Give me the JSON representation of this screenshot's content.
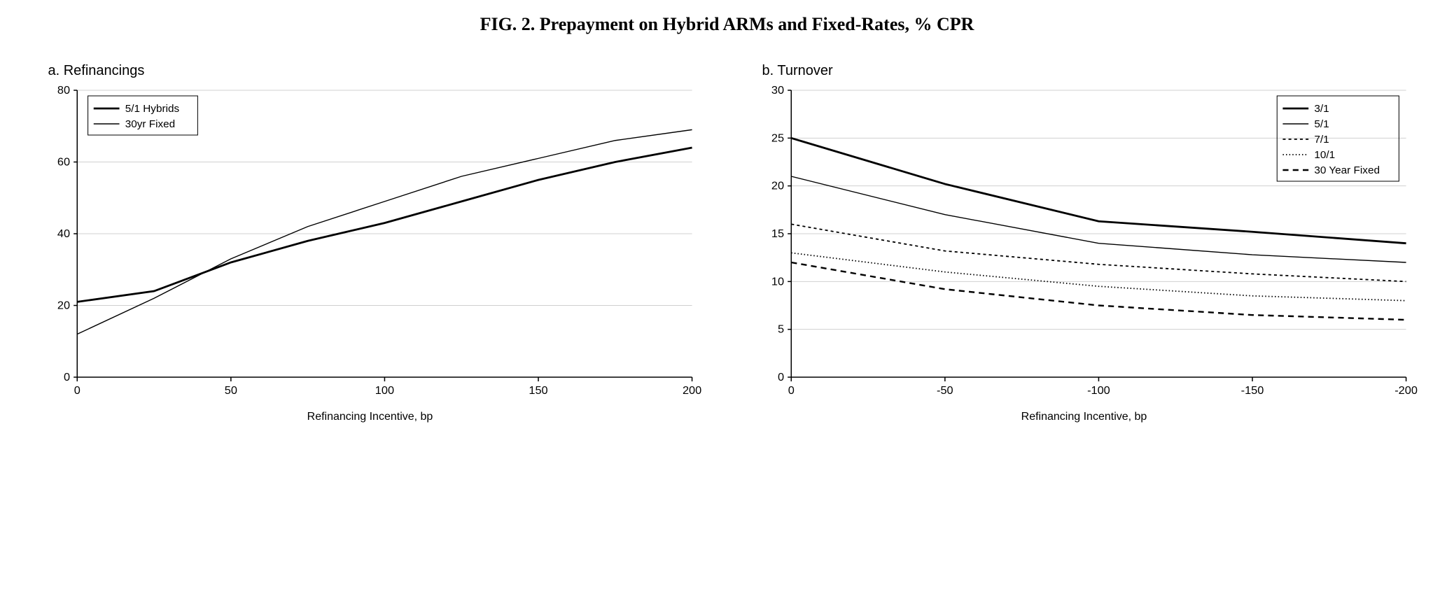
{
  "figure_title": "FIG. 2.  Prepayment on Hybrid ARMs and Fixed-Rates, % CPR",
  "panel_a": {
    "title": "a. Refinancings",
    "xlabel": "Refinancing Incentive, bp",
    "type": "line",
    "xlim": [
      0,
      200
    ],
    "ylim": [
      0,
      80
    ],
    "xticks": [
      0,
      50,
      100,
      150,
      200
    ],
    "yticks": [
      0,
      20,
      40,
      60,
      80
    ],
    "background_color": "#ffffff",
    "axis_color": "#000000",
    "grid_color": "#d0d0d0",
    "grid_on": true,
    "series": [
      {
        "name": "5/1 Hybrids",
        "color": "#000000",
        "line_width": 2.8,
        "dash": "none",
        "x": [
          0,
          25,
          50,
          75,
          100,
          125,
          150,
          175,
          200
        ],
        "y": [
          21,
          24,
          32,
          38,
          43,
          49,
          55,
          60,
          64
        ]
      },
      {
        "name": "30yr Fixed",
        "color": "#000000",
        "line_width": 1.4,
        "dash": "none",
        "x": [
          0,
          25,
          50,
          75,
          100,
          125,
          150,
          175,
          200
        ],
        "y": [
          12,
          22,
          33,
          42,
          49,
          56,
          61,
          66,
          69
        ]
      }
    ],
    "legend": {
      "position": "top-left",
      "items": [
        "5/1 Hybrids",
        "30yr Fixed"
      ]
    },
    "title_fontsize": 20,
    "label_fontsize": 16,
    "tick_fontsize": 16
  },
  "panel_b": {
    "title": "b. Turnover",
    "xlabel": "Refinancing Incentive, bp",
    "type": "line",
    "xlim": [
      0,
      -200
    ],
    "ylim": [
      0,
      30
    ],
    "xticks_display": [
      "0",
      "-50",
      "-100",
      "-150",
      "-200"
    ],
    "xticks_pos": [
      0,
      1,
      2,
      3,
      4
    ],
    "yticks": [
      0,
      5,
      10,
      15,
      20,
      25,
      30
    ],
    "background_color": "#ffffff",
    "axis_color": "#000000",
    "grid_color": "#d0d0d0",
    "grid_on": true,
    "series": [
      {
        "name": "3/1",
        "color": "#000000",
        "line_width": 2.8,
        "dash": "none",
        "x": [
          0,
          1,
          2,
          3,
          4
        ],
        "y": [
          25,
          20.2,
          16.3,
          15.2,
          14
        ]
      },
      {
        "name": "5/1",
        "color": "#000000",
        "line_width": 1.4,
        "dash": "none",
        "x": [
          0,
          1,
          2,
          3,
          4
        ],
        "y": [
          21,
          17,
          14,
          12.8,
          12
        ]
      },
      {
        "name": "7/1",
        "color": "#000000",
        "line_width": 1.8,
        "dash": "4 4",
        "x": [
          0,
          1,
          2,
          3,
          4
        ],
        "y": [
          16,
          13.2,
          11.8,
          10.8,
          10
        ]
      },
      {
        "name": "10/1",
        "color": "#000000",
        "line_width": 1.8,
        "dash": "1.5 3",
        "x": [
          0,
          1,
          2,
          3,
          4
        ],
        "y": [
          13,
          11,
          9.5,
          8.5,
          8
        ]
      },
      {
        "name": "30 Year Fixed",
        "color": "#000000",
        "line_width": 2.4,
        "dash": "8 6",
        "x": [
          0,
          1,
          2,
          3,
          4
        ],
        "y": [
          12,
          9.2,
          7.5,
          6.5,
          6
        ]
      }
    ],
    "legend": {
      "position": "top-right",
      "items": [
        "3/1",
        "5/1",
        "7/1",
        "10/1",
        "30 Year Fixed"
      ]
    },
    "title_fontsize": 20,
    "label_fontsize": 16,
    "tick_fontsize": 16
  }
}
